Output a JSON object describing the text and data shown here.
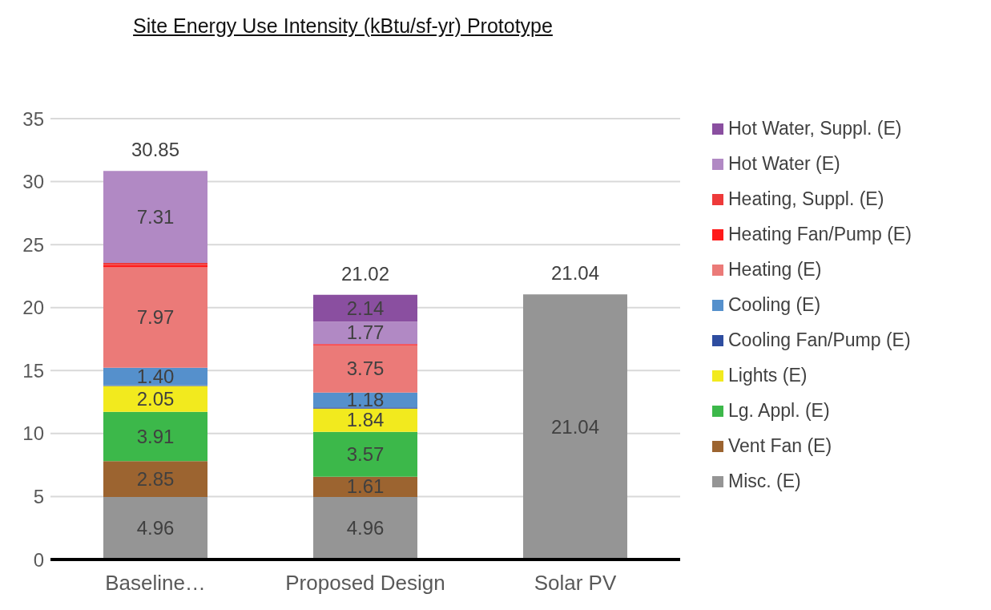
{
  "chart_data": {
    "type": "bar",
    "title": "Site Energy Use Intensity (kBtu/sf-yr) Prototype",
    "categories": [
      "Baseline…",
      "Proposed Design",
      "Solar PV"
    ],
    "stacked": true,
    "ylim": [
      0,
      35
    ],
    "yticks": [
      0,
      5,
      10,
      15,
      20,
      25,
      30,
      35
    ],
    "grid": "y",
    "legend": "right",
    "totals": [
      "30.85",
      "21.02",
      "21.04"
    ],
    "series": [
      {
        "name": "Misc. (E)",
        "color": "#959595",
        "values": [
          4.96,
          4.96,
          21.04
        ],
        "value_labels": [
          "4.96",
          "4.96",
          "21.04"
        ]
      },
      {
        "name": "Vent Fan (E)",
        "color": "#9c6430",
        "values": [
          2.85,
          1.61,
          0
        ],
        "value_labels": [
          "2.85",
          "1.61",
          null
        ]
      },
      {
        "name": "Lg. Appl. (E)",
        "color": "#3cb84a",
        "values": [
          3.91,
          3.57,
          0
        ],
        "value_labels": [
          "3.91",
          "3.57",
          null
        ]
      },
      {
        "name": "Lights (E)",
        "color": "#f2ea1e",
        "values": [
          2.05,
          1.84,
          0
        ],
        "value_labels": [
          "2.05",
          "1.84",
          null
        ]
      },
      {
        "name": "Cooling Fan/Pump (E)",
        "color": "#2e4da0",
        "values": [
          0.05,
          0.1,
          0
        ],
        "value_labels": [
          null,
          null,
          null
        ]
      },
      {
        "name": "Cooling (E)",
        "color": "#5590cc",
        "values": [
          1.4,
          1.18,
          0
        ],
        "value_labels": [
          "1.40",
          "1.18",
          null
        ]
      },
      {
        "name": "Heating (E)",
        "color": "#eb7a78",
        "values": [
          7.97,
          3.75,
          0
        ],
        "value_labels": [
          "7.97",
          "3.75",
          null
        ]
      },
      {
        "name": "Heating Fan/Pump (E)",
        "color": "#ff1a1a",
        "values": [
          0.2,
          0.1,
          0
        ],
        "value_labels": [
          null,
          null,
          null
        ]
      },
      {
        "name": "Heating, Suppl. (E)",
        "color": "#ee3a3a",
        "values": [
          0.15,
          0,
          0
        ],
        "value_labels": [
          null,
          null,
          null
        ]
      },
      {
        "name": "Hot Water (E)",
        "color": "#b189c4",
        "values": [
          7.31,
          1.77,
          0
        ],
        "value_labels": [
          "7.31",
          "1.77",
          null
        ]
      },
      {
        "name": "Hot Water, Suppl. (E)",
        "color": "#8a4fa0",
        "values": [
          0,
          2.14,
          0
        ],
        "value_labels": [
          null,
          "2.14",
          null
        ]
      }
    ]
  }
}
